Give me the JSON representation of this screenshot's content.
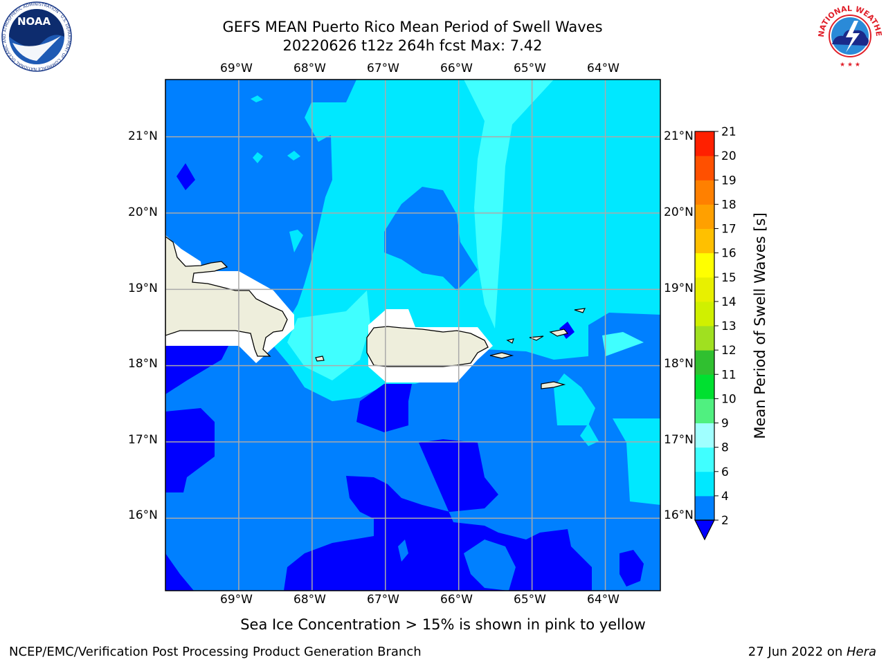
{
  "header": {
    "title_line1": "GEFS MEAN Puerto Rico Mean Period of Swell Waves",
    "title_line2": "20220626 t12z 264h fcst   Max: 7.42"
  },
  "map": {
    "lon_labels": [
      "69°W",
      "68°W",
      "67°W",
      "66°W",
      "65°W",
      "64°W"
    ],
    "lat_labels": [
      "21°N",
      "20°N",
      "19°N",
      "18°N",
      "17°N",
      "16°N"
    ],
    "lon_values": [
      -69,
      -68,
      -67,
      -66,
      -65,
      -64
    ],
    "lat_values": [
      21,
      20,
      19,
      18,
      17,
      16
    ],
    "extent": {
      "lon": [
        -70,
        -63.25
      ],
      "lat": [
        15.05,
        21.75
      ]
    },
    "grid": true
  },
  "colorbar": {
    "label": "Mean Period of Swell Waves [s]",
    "levels": [
      2,
      4,
      6,
      8,
      9,
      10,
      11,
      12,
      13,
      14,
      15,
      16,
      17,
      18,
      19,
      20,
      21
    ],
    "tick_labels": [
      "2",
      "4",
      "6",
      "8",
      "9",
      "10",
      "11",
      "12",
      "13",
      "14",
      "15",
      "16",
      "17",
      "18",
      "19",
      "20",
      "21"
    ],
    "colors": [
      "#0080ff",
      "#00e8ff",
      "#40ffff",
      "#a0ffff",
      "#50f080",
      "#00e030",
      "#30c030",
      "#a0e020",
      "#d0f000",
      "#e8f000",
      "#ffff00",
      "#ffc000",
      "#ffa000",
      "#ff8000",
      "#ff5000",
      "#ff2000",
      "#ff0000"
    ],
    "under_color": "#0000ff",
    "extend": "min"
  },
  "colors": {
    "ocean_dark": "#0000ff",
    "ocean_mid": "#0080ff",
    "ocean_light": "#00e8ff",
    "ocean_lighter": "#40ffff",
    "land": "#eeeedc",
    "grid": "#aaaaaa"
  },
  "logos": {
    "noaa_text": "NOAA",
    "noaa_ring": "NATIONAL OCEANIC AND ATMOSPHERIC ADMINISTRATION · U.S. DEPARTMENT OF COMMERCE",
    "nws_ring": "NATIONAL WEATHER SERVICE"
  },
  "footer": {
    "note": "Sea Ice Concentration > 15% is shown in pink to yellow",
    "left": "NCEP/EMC/Verification Post Processing Product Generation Branch",
    "date": "27 Jun 2022 on ",
    "machine": "Hera"
  }
}
